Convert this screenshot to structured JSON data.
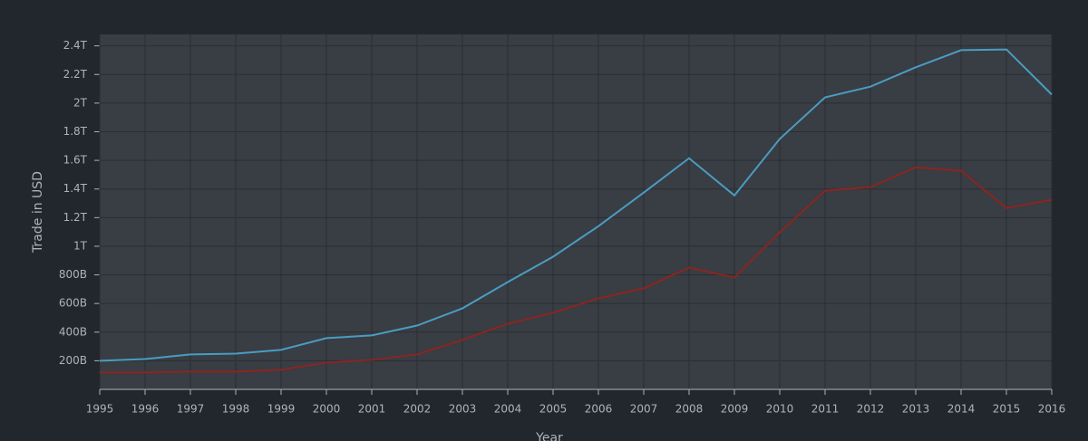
{
  "chart_data": {
    "type": "line",
    "x_label": "Year",
    "y_label": "Trade in USD",
    "x": [
      1995,
      1996,
      1997,
      1998,
      1999,
      2000,
      2001,
      2002,
      2003,
      2004,
      2005,
      2006,
      2007,
      2008,
      2009,
      2010,
      2011,
      2012,
      2013,
      2014,
      2015,
      2016
    ],
    "series": [
      {
        "color": "#4a9cc2",
        "values": [
          200000000000,
          212000000000,
          244000000000,
          250000000000,
          276000000000,
          358000000000,
          377000000000,
          446000000000,
          566000000000,
          750000000000,
          927000000000,
          1140000000000,
          1375000000000,
          1615000000000,
          1355000000000,
          1750000000000,
          2040000000000,
          2115000000000,
          2250000000000,
          2370000000000,
          2375000000000,
          2060000000000
        ]
      },
      {
        "color": "#8b2520",
        "values": [
          118000000000,
          118000000000,
          124000000000,
          124000000000,
          137000000000,
          187000000000,
          206000000000,
          244000000000,
          345000000000,
          459000000000,
          535000000000,
          636000000000,
          706000000000,
          851000000000,
          781000000000,
          1097000000000,
          1388000000000,
          1413000000000,
          1552000000000,
          1527000000000,
          1267000000000,
          1324000000000
        ]
      }
    ],
    "xlim": [
      1995,
      2016
    ],
    "xticks": [
      1995,
      1996,
      1997,
      1998,
      1999,
      2000,
      2001,
      2002,
      2003,
      2004,
      2005,
      2006,
      2007,
      2008,
      2009,
      2010,
      2011,
      2012,
      2013,
      2014,
      2015,
      2016
    ],
    "ylim": [
      0,
      2480000000000
    ],
    "yticks": [
      {
        "value": 200000000000,
        "label": "200B"
      },
      {
        "value": 400000000000,
        "label": "400B"
      },
      {
        "value": 600000000000,
        "label": "600B"
      },
      {
        "value": 800000000000,
        "label": "800B"
      },
      {
        "value": 1000000000000,
        "label": "1T"
      },
      {
        "value": 1200000000000,
        "label": "1.2T"
      },
      {
        "value": 1400000000000,
        "label": "1.4T"
      },
      {
        "value": 1600000000000,
        "label": "1.6T"
      },
      {
        "value": 1800000000000,
        "label": "1.8T"
      },
      {
        "value": 2000000000000,
        "label": "2T"
      },
      {
        "value": 2200000000000,
        "label": "2.2T"
      },
      {
        "value": 2400000000000,
        "label": "2.4T"
      }
    ],
    "grid": true
  }
}
